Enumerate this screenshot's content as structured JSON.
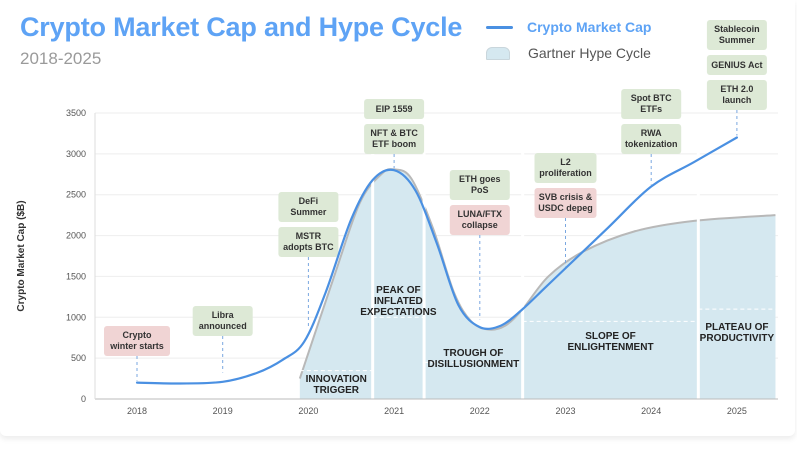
{
  "header": {
    "title": "Crypto Market Cap and Hype Cycle",
    "subtitle": "2018-2025"
  },
  "legend": {
    "items": [
      {
        "label": "Crypto Market Cap",
        "type": "line",
        "color": "#4a90e2"
      },
      {
        "label": "Gartner Hype Cycle",
        "type": "area",
        "color": "#d5e8f0"
      }
    ]
  },
  "chart_data": {
    "type": "line",
    "title": "Crypto Market Cap and Hype Cycle",
    "subtitle": "2018-2025",
    "xlabel": "",
    "ylabel": "Crypto Market Cap ($B)",
    "xlim": [
      2017.5,
      2025.45
    ],
    "ylim": [
      0,
      3500
    ],
    "yticks": [
      0,
      500,
      1000,
      1500,
      2000,
      2500,
      3000,
      3500
    ],
    "xticks": [
      2018,
      2019,
      2020,
      2021,
      2022,
      2023,
      2024,
      2025
    ],
    "grid": true,
    "legend_position": "top-right",
    "series": [
      {
        "name": "Crypto Market Cap",
        "color": "#4a90e2",
        "x": [
          2018.0,
          2018.5,
          2019.0,
          2019.4,
          2019.7,
          2019.95,
          2020.2,
          2020.5,
          2020.75,
          2021.0,
          2021.25,
          2021.5,
          2021.75,
          2022.0,
          2022.25,
          2022.5,
          2022.75,
          2023.0,
          2023.5,
          2024.0,
          2024.5,
          2025.0
        ],
        "y": [
          200,
          190,
          210,
          320,
          480,
          700,
          1300,
          2200,
          2680,
          2800,
          2550,
          1900,
          1150,
          880,
          900,
          1100,
          1350,
          1600,
          2100,
          2600,
          2900,
          3200
        ]
      },
      {
        "name": "Gartner Hype Cycle",
        "color": "#d5e8f0",
        "x": [
          2019.9,
          2020.3,
          2020.6,
          2020.85,
          2021.0,
          2021.2,
          2021.45,
          2021.7,
          2021.9,
          2022.1,
          2022.3,
          2022.5,
          2022.8,
          2023.2,
          2023.8,
          2024.5,
          2025.45
        ],
        "y": [
          250,
          1500,
          2400,
          2750,
          2810,
          2700,
          2100,
          1300,
          950,
          850,
          900,
          1100,
          1500,
          1800,
          2050,
          2180,
          2250
        ]
      }
    ],
    "phases": [
      {
        "label_lines": [
          "INNOVATION",
          "TRIGGER"
        ],
        "x_start": 2019.9,
        "x_end": 2020.75
      },
      {
        "label_lines": [
          "PEAK OF",
          "INFLATED",
          "EXPECTATIONS"
        ],
        "x_start": 2020.75,
        "x_end": 2021.35
      },
      {
        "label_lines": [
          "TROUGH OF",
          "DISILLUSIONMENT"
        ],
        "x_start": 2021.35,
        "x_end": 2022.5
      },
      {
        "label_lines": [
          "SLOPE OF",
          "ENLIGHTENMENT"
        ],
        "x_start": 2022.5,
        "x_end": 2024.55
      },
      {
        "label_lines": [
          "PLATEAU OF",
          "PRODUCTIVITY"
        ],
        "x_start": 2024.55,
        "x_end": 2025.45
      }
    ],
    "annotations": [
      {
        "year": 2018.0,
        "value": 200,
        "sentiment": "negative",
        "boxes": [
          [
            "Crypto",
            "winter starts"
          ]
        ]
      },
      {
        "year": 2019.0,
        "value": 300,
        "sentiment": "positive",
        "boxes": [
          [
            "Libra",
            "announced"
          ]
        ]
      },
      {
        "year": 2020.0,
        "value": 850,
        "sentiment": "positive",
        "boxes": [
          [
            "DeFi",
            "Summer"
          ],
          [
            "MSTR",
            "adopts BTC"
          ]
        ]
      },
      {
        "year": 2021.0,
        "value": 2800,
        "sentiment": "positive",
        "boxes": [
          [
            "EIP 1559"
          ],
          [
            "NFT & BTC",
            "ETF boom"
          ]
        ]
      },
      {
        "year": 2022.0,
        "value": 950,
        "sentiment": "mixed",
        "boxes": [
          [
            "ETH goes",
            "PoS"
          ],
          [
            "LUNA/FTX",
            "collapse"
          ]
        ]
      },
      {
        "year": 2023.0,
        "value": 1600,
        "sentiment": "mixed",
        "boxes": [
          [
            "L2",
            "proliferation"
          ],
          [
            "SVB crisis &",
            "USDC depeg"
          ]
        ]
      },
      {
        "year": 2024.0,
        "value": 2600,
        "sentiment": "positive",
        "boxes": [
          [
            "Spot BTC",
            "ETFs"
          ],
          [
            "RWA",
            "tokenization"
          ]
        ]
      },
      {
        "year": 2025.0,
        "value": 3200,
        "sentiment": "positive",
        "boxes": [
          [
            "Stablecoin",
            "Summer"
          ],
          [
            "GENIUS Act"
          ],
          [
            "ETH 2.0",
            "launch"
          ]
        ]
      }
    ]
  },
  "colors": {
    "positive_box": "#dde9d6",
    "negative_box": "#f0d4d4",
    "area_fill": "#d5e8f0",
    "line": "#4a90e2",
    "title": "#5ea3f5"
  }
}
